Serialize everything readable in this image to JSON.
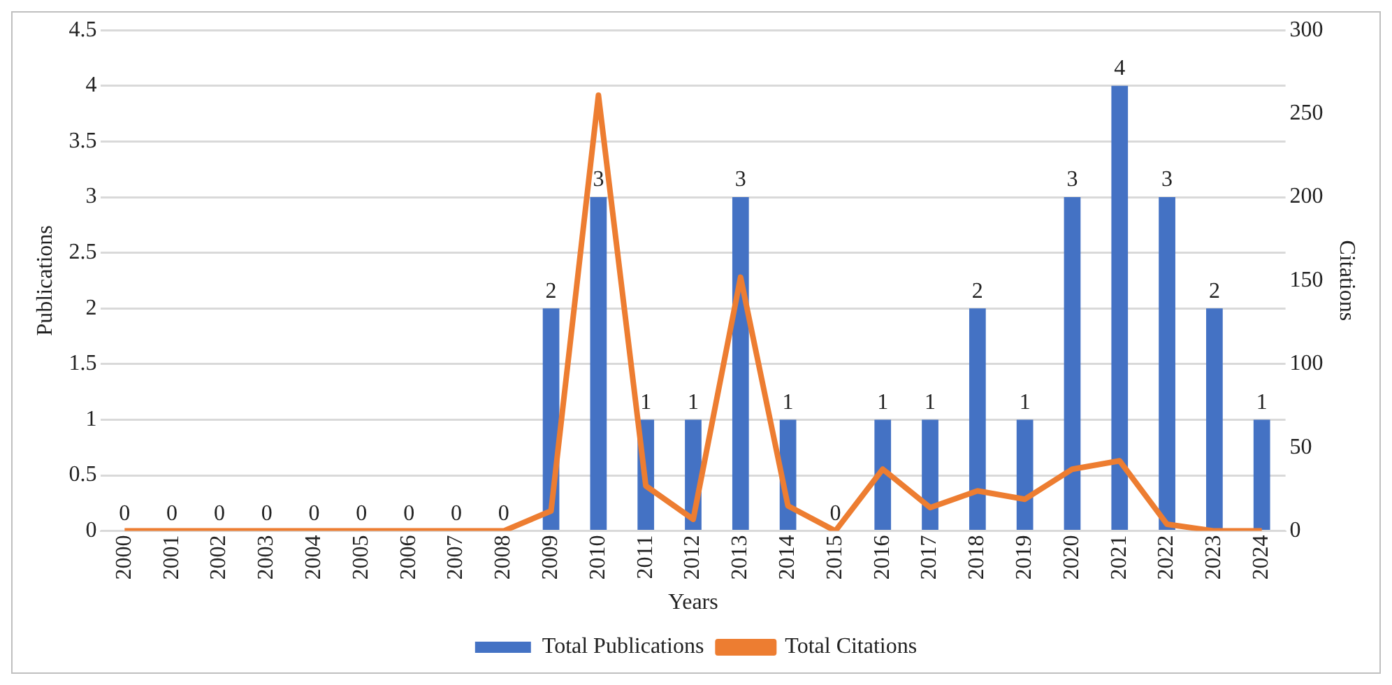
{
  "chart_data": {
    "type": "bar",
    "xlabel": "Years",
    "ylabel": "Publications",
    "y2label": "Citations",
    "categories": [
      "2000",
      "2001",
      "2002",
      "2003",
      "2004",
      "2005",
      "2006",
      "2007",
      "2008",
      "2009",
      "2010",
      "2011",
      "2012",
      "2013",
      "2014",
      "2015",
      "2016",
      "2017",
      "2018",
      "2019",
      "2020",
      "2021",
      "2022",
      "2023",
      "2024"
    ],
    "series": [
      {
        "name": "Total Publications",
        "color": "#4472c4",
        "data_labels": true,
        "values": [
          0,
          0,
          0,
          0,
          0,
          0,
          0,
          0,
          0,
          2,
          3,
          1,
          1,
          3,
          1,
          0,
          1,
          1,
          2,
          1,
          3,
          4,
          3,
          2,
          1
        ]
      },
      {
        "name": "Total Citations",
        "type": "line",
        "axis": "y2",
        "color": "#ed7d31",
        "marker": "none",
        "values": [
          0,
          0,
          0,
          0,
          0,
          0,
          0,
          0,
          0,
          12,
          261,
          27,
          7,
          152,
          15,
          0,
          37,
          14,
          24,
          19,
          37,
          42,
          4,
          0,
          0
        ]
      }
    ],
    "ylim": [
      0,
      4.5
    ],
    "yticks": [
      0,
      0.5,
      1,
      1.5,
      2,
      2.5,
      3,
      3.5,
      4,
      4.5
    ],
    "y2lim": [
      0,
      300
    ],
    "y2ticks": [
      0,
      50,
      100,
      150,
      200,
      250,
      300
    ],
    "grid": "y",
    "legend": "bottom"
  }
}
